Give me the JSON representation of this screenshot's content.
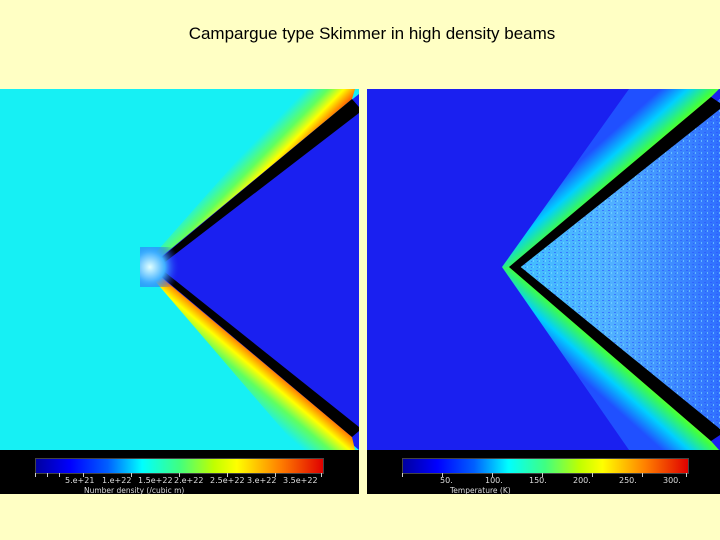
{
  "title": "Campargue type Skimmer in high density beams",
  "left_panel": {
    "colorbar": {
      "ticks": [
        "5.e+21",
        "1.e+22",
        "1.5e+22",
        "2.e+22",
        "2.5e+22",
        "3.e+22",
        "3.5e+22"
      ],
      "caption": "Number density  (/cubic m)"
    }
  },
  "right_panel": {
    "colorbar": {
      "ticks": [
        "50.",
        "100.",
        "150.",
        "200.",
        "250.",
        "300."
      ],
      "caption": "Temperature    (K)"
    }
  },
  "colors": {
    "background": "#ffffc4",
    "dark_blue": "#1a20f0",
    "cyan": "#16f0f4",
    "red": "#e60000"
  }
}
